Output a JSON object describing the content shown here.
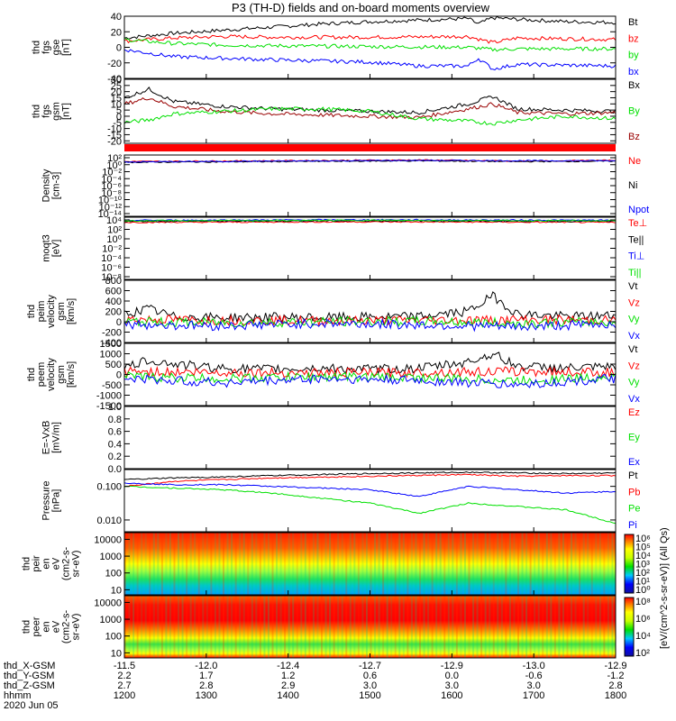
{
  "title": "P3 (TH-D) fields and on-board moments overview",
  "colors": {
    "black": "#000000",
    "red": "#ff0000",
    "green": "#00e000",
    "blue": "#0000ff",
    "darkred": "#990000"
  },
  "chart_data": [
    {
      "type": "line",
      "name": "fgs-gse",
      "ylabel_lines": [
        "thd",
        "fgs",
        "gse",
        "[nT]"
      ],
      "yticks": [
        40,
        20,
        0,
        -20,
        -40
      ],
      "ylim": [
        -40,
        40
      ],
      "legend": [
        {
          "label": "Bt",
          "color": "#000000"
        },
        {
          "label": "bz",
          "color": "#ff0000"
        },
        {
          "label": "by",
          "color": "#00e000"
        },
        {
          "label": "bx",
          "color": "#0000ff"
        }
      ],
      "series": [
        {
          "color": "#000000",
          "x": [
            0,
            0.05,
            0.1,
            0.2,
            0.3,
            0.4,
            0.5,
            0.6,
            0.7,
            0.72,
            0.75,
            0.8,
            0.9,
            1.0
          ],
          "y": [
            12,
            15,
            18,
            22,
            26,
            30,
            33,
            35,
            37,
            30,
            38,
            36,
            33,
            32
          ]
        },
        {
          "color": "#ff0000",
          "x": [
            0,
            0.1,
            0.2,
            0.3,
            0.5,
            0.7,
            0.75,
            0.8,
            1.0
          ],
          "y": [
            8,
            12,
            14,
            13,
            13,
            14,
            6,
            12,
            10
          ]
        },
        {
          "color": "#00e000",
          "x": [
            0,
            0.1,
            0.2,
            0.3,
            0.5,
            0.7,
            0.75,
            0.8,
            1.0
          ],
          "y": [
            10,
            5,
            3,
            2,
            1,
            0,
            -3,
            -2,
            -2
          ]
        },
        {
          "color": "#0000ff",
          "x": [
            0,
            0.1,
            0.2,
            0.3,
            0.5,
            0.6,
            0.7,
            0.72,
            0.75,
            0.8,
            1.0
          ],
          "y": [
            -3,
            -12,
            -14,
            -16,
            -19,
            -24,
            -24,
            -14,
            -28,
            -22,
            -24
          ]
        }
      ]
    },
    {
      "type": "line",
      "name": "fgs-gsm",
      "ylabel_lines": [
        "thd",
        "fgs",
        "gsm",
        "[nT]"
      ],
      "yticks": [
        30,
        25,
        20,
        15,
        10,
        5,
        0,
        -5,
        -10,
        -15,
        -20
      ],
      "ylim": [
        -22,
        30
      ],
      "legend": [
        {
          "label": "Bx",
          "color": "#000000"
        },
        {
          "label": "By",
          "color": "#00e000"
        },
        {
          "label": "Bz",
          "color": "#990000"
        }
      ],
      "series": [
        {
          "color": "#000000",
          "x": [
            0,
            0.05,
            0.1,
            0.2,
            0.3,
            0.4,
            0.5,
            0.6,
            0.7,
            0.75,
            0.8,
            0.9,
            1.0
          ],
          "y": [
            15,
            22,
            12,
            8,
            6,
            5,
            4,
            3,
            10,
            16,
            6,
            5,
            4
          ]
        },
        {
          "color": "#990000",
          "x": [
            0,
            0.05,
            0.1,
            0.2,
            0.3,
            0.4,
            0.5,
            0.6,
            0.7,
            0.75,
            0.8,
            0.9,
            1.0
          ],
          "y": [
            10,
            15,
            8,
            4,
            2,
            1,
            0,
            -1,
            6,
            10,
            3,
            2,
            3
          ]
        },
        {
          "color": "#00e000",
          "x": [
            0,
            0.05,
            0.1,
            0.2,
            0.3,
            0.4,
            0.5,
            0.6,
            0.7,
            0.75,
            0.8,
            0.9,
            1.0
          ],
          "y": [
            -5,
            -3,
            2,
            4,
            6,
            6,
            4,
            -2,
            -4,
            -6,
            -3,
            0,
            -2
          ]
        }
      ]
    },
    {
      "type": "line",
      "name": "density",
      "ylog": true,
      "ylabel_lines": [
        "Density",
        "[cm-3]"
      ],
      "yticks": [
        "10²",
        "10⁰",
        "10⁻²",
        "10⁻⁴",
        "10⁻⁶",
        "10⁻⁸",
        "10⁻¹⁰",
        "10⁻¹²",
        "10⁻¹⁴"
      ],
      "ylim": [
        -14,
        2
      ],
      "legend": [
        {
          "label": "Ne",
          "color": "#ff0000"
        },
        {
          "label": "Ni",
          "color": "#000000"
        },
        {
          "label": "Npot",
          "color": "#0000ff"
        }
      ],
      "series": [
        {
          "color": "#ff0000",
          "x": [
            0,
            0.3,
            0.6,
            0.8,
            1.0
          ],
          "y": [
            0.3,
            0.5,
            0.7,
            0.4,
            0.6
          ]
        },
        {
          "color": "#000000",
          "x": [
            0,
            0.3,
            0.6,
            0.8,
            1.0
          ],
          "y": [
            0.1,
            0.3,
            0.5,
            0.3,
            0.4
          ]
        },
        {
          "color": "#0000ff",
          "x": [
            0,
            0.3,
            0.6,
            0.8,
            1.0
          ],
          "y": [
            0.2,
            0.4,
            0.6,
            0.5,
            0.5
          ]
        }
      ]
    },
    {
      "type": "line",
      "name": "temperature",
      "ylog": true,
      "ylabel_lines": [
        "moqt3",
        "[eV]"
      ],
      "yticks": [
        "10⁴",
        "10²",
        "10⁰",
        "10⁻²",
        "10⁻⁴",
        "10⁻⁶",
        "10⁻⁸"
      ],
      "ylim": [
        -8,
        4
      ],
      "legend": [
        {
          "label": "Te⊥",
          "color": "#ff0000"
        },
        {
          "label": "Te||",
          "color": "#000000"
        },
        {
          "label": "Ti⊥",
          "color": "#0000ff"
        },
        {
          "label": "Ti||",
          "color": "#00e000"
        }
      ],
      "series": [
        {
          "color": "#ff0000",
          "x": [
            0,
            0.5,
            1.0
          ],
          "y": [
            3.0,
            3.1,
            3.0
          ]
        },
        {
          "color": "#000000",
          "x": [
            0,
            0.5,
            1.0
          ],
          "y": [
            3.2,
            3.3,
            3.2
          ]
        },
        {
          "color": "#0000ff",
          "x": [
            0,
            0.5,
            1.0
          ],
          "y": [
            3.4,
            3.5,
            3.4
          ]
        },
        {
          "color": "#00e000",
          "x": [
            0,
            0.5,
            1.0
          ],
          "y": [
            3.3,
            3.4,
            3.3
          ]
        }
      ]
    },
    {
      "type": "line",
      "name": "peim-velocity",
      "ylabel_lines": [
        "thd",
        "peim",
        "velocity",
        "gsm",
        "[km/s]"
      ],
      "yticks": [
        800,
        600,
        400,
        200,
        0,
        -200,
        -400
      ],
      "ylim": [
        -400,
        800
      ],
      "legend": [
        {
          "label": "Vt",
          "color": "#000000"
        },
        {
          "label": "Vz",
          "color": "#ff0000"
        },
        {
          "label": "Vy",
          "color": "#00e000"
        },
        {
          "label": "Vx",
          "color": "#0000ff"
        }
      ],
      "series": [
        {
          "color": "#000000",
          "x": [
            0,
            0.05,
            0.1,
            0.2,
            0.3,
            0.4,
            0.5,
            0.6,
            0.7,
            0.75,
            0.8,
            0.9,
            1.0
          ],
          "y": [
            150,
            250,
            100,
            80,
            90,
            80,
            90,
            100,
            200,
            500,
            150,
            100,
            120
          ]
        },
        {
          "color": "#ff0000",
          "x": [
            0,
            0.2,
            0.4,
            0.6,
            0.8,
            1.0
          ],
          "y": [
            50,
            30,
            20,
            30,
            40,
            30
          ]
        },
        {
          "color": "#00e000",
          "x": [
            0,
            0.2,
            0.4,
            0.6,
            0.8,
            1.0
          ],
          "y": [
            0,
            -20,
            0,
            10,
            -30,
            0
          ]
        },
        {
          "color": "#0000ff",
          "x": [
            0,
            0.2,
            0.4,
            0.6,
            0.8,
            1.0
          ],
          "y": [
            -50,
            -80,
            -30,
            -60,
            -100,
            -40
          ]
        }
      ]
    },
    {
      "type": "line",
      "name": "peem-velocity",
      "ylabel_lines": [
        "thd",
        "peem",
        "velocity",
        "gsm",
        "[km/s]"
      ],
      "yticks": [
        1500,
        1000,
        500,
        0,
        -500,
        -1000,
        -1500
      ],
      "ylim": [
        -1500,
        1500
      ],
      "legend": [
        {
          "label": "Vt",
          "color": "#000000"
        },
        {
          "label": "Vz",
          "color": "#ff0000"
        },
        {
          "label": "Vy",
          "color": "#00e000"
        },
        {
          "label": "Vx",
          "color": "#0000ff"
        }
      ],
      "series": [
        {
          "color": "#000000",
          "x": [
            0,
            0.05,
            0.1,
            0.2,
            0.3,
            0.4,
            0.5,
            0.6,
            0.7,
            0.75,
            0.8,
            0.9,
            1.0
          ],
          "y": [
            300,
            700,
            500,
            300,
            250,
            300,
            250,
            300,
            600,
            1000,
            400,
            300,
            350
          ]
        },
        {
          "color": "#ff0000",
          "x": [
            0,
            0.2,
            0.4,
            0.6,
            0.8,
            1.0
          ],
          "y": [
            150,
            100,
            80,
            100,
            150,
            100
          ]
        },
        {
          "color": "#00e000",
          "x": [
            0,
            0.2,
            0.4,
            0.6,
            0.8,
            1.0
          ],
          "y": [
            -100,
            -200,
            -100,
            -150,
            -300,
            -100
          ]
        },
        {
          "color": "#0000ff",
          "x": [
            0,
            0.2,
            0.4,
            0.6,
            0.8,
            1.0
          ],
          "y": [
            -200,
            -400,
            -200,
            -300,
            -500,
            -200
          ]
        }
      ]
    },
    {
      "type": "line",
      "name": "efield",
      "ylabel_lines": [
        "E=-VxB",
        "[mV/m]"
      ],
      "yticks": [
        "1.0",
        "0.8",
        "0.6",
        "0.4",
        "0.2",
        "0.0"
      ],
      "ylim": [
        0,
        1
      ],
      "legend": [
        {
          "label": "Ez",
          "color": "#ff0000"
        },
        {
          "label": "Ey",
          "color": "#00e000"
        },
        {
          "label": "Ex",
          "color": "#0000ff"
        }
      ],
      "series": []
    },
    {
      "type": "line",
      "name": "pressure",
      "ylog": true,
      "ylabel_lines": [
        "Pressure",
        "[nPa]"
      ],
      "yticks": [
        "0.100",
        "0.010"
      ],
      "ylim": [
        -2.35,
        -0.5
      ],
      "legend": [
        {
          "label": "Pt",
          "color": "#000000"
        },
        {
          "label": "Pb",
          "color": "#ff0000"
        },
        {
          "label": "Pe",
          "color": "#00e000"
        },
        {
          "label": "Pi",
          "color": "#0000ff"
        }
      ],
      "series": [
        {
          "color": "#000000",
          "x": [
            0,
            0.1,
            0.2,
            0.3,
            0.5,
            0.7,
            0.8,
            0.9,
            1.0
          ],
          "y": [
            -0.8,
            -0.75,
            -0.72,
            -0.68,
            -0.62,
            -0.58,
            -0.6,
            -0.62,
            -0.6
          ]
        },
        {
          "color": "#ff0000",
          "x": [
            0,
            0.1,
            0.2,
            0.3,
            0.5,
            0.7,
            0.8,
            0.9,
            1.0
          ],
          "y": [
            -1.0,
            -0.85,
            -0.8,
            -0.75,
            -0.7,
            -0.65,
            -0.7,
            -0.68,
            -0.68
          ]
        },
        {
          "color": "#0000ff",
          "x": [
            0,
            0.1,
            0.2,
            0.3,
            0.5,
            0.6,
            0.7,
            0.8,
            0.9,
            1.0
          ],
          "y": [
            -0.9,
            -0.95,
            -0.95,
            -1.0,
            -1.1,
            -1.3,
            -1.0,
            -1.1,
            -1.2,
            -1.15
          ]
        },
        {
          "color": "#00e000",
          "x": [
            0,
            0.1,
            0.2,
            0.3,
            0.5,
            0.6,
            0.7,
            0.8,
            0.9,
            1.0
          ],
          "y": [
            -1.0,
            -1.05,
            -1.1,
            -1.2,
            -1.5,
            -1.8,
            -1.5,
            -1.6,
            -1.7,
            -2.1
          ]
        }
      ]
    },
    {
      "type": "heatmap",
      "name": "peir-spectrogram",
      "ylabel_lines": [
        "thd",
        "peir",
        "en",
        "eV",
        "(cm2-s-",
        "sr-eV)"
      ],
      "yticks": [
        10000,
        1000,
        100,
        10
      ],
      "ylim": [
        5,
        25000
      ],
      "colorbar_ticks": [
        "10⁶",
        "10⁵",
        "10⁴",
        "10³",
        "10²",
        "10¹",
        "10⁰"
      ]
    },
    {
      "type": "heatmap",
      "name": "peer-spectrogram",
      "ylabel_lines": [
        "thd",
        "peer",
        "en",
        "eV",
        "(cm2-s-",
        "sr-eV)"
      ],
      "yticks": [
        10000,
        1000,
        100,
        10
      ],
      "ylim": [
        5,
        25000
      ],
      "colorbar_ticks": [
        "10⁸",
        "10⁶",
        "10⁴",
        "10²"
      ]
    }
  ],
  "colorbar_label": "[eV/(cm^2-s-sr-eV)] (All Qs)",
  "spectra_label": "[eV/(cm^2-s-sr-eV)]",
  "xaxis": {
    "rows": [
      {
        "name": "thd_X-GSM",
        "values": [
          "-11.5",
          "-12.0",
          "-12.4",
          "-12.7",
          "-12.9",
          "-13.0",
          "-12.9"
        ]
      },
      {
        "name": "thd_Y-GSM",
        "values": [
          "2.2",
          "1.7",
          "1.2",
          "0.6",
          "0.0",
          "-0.6",
          "-1.2"
        ]
      },
      {
        "name": "thd_Z-GSM",
        "values": [
          "2.7",
          "2.8",
          "2.9",
          "3.0",
          "3.0",
          "3.0",
          "2.8"
        ]
      },
      {
        "name": "hhmm",
        "values": [
          "1200",
          "1300",
          "1400",
          "1500",
          "1600",
          "1700",
          "1800"
        ]
      }
    ],
    "date": "2020 Jun 05"
  }
}
